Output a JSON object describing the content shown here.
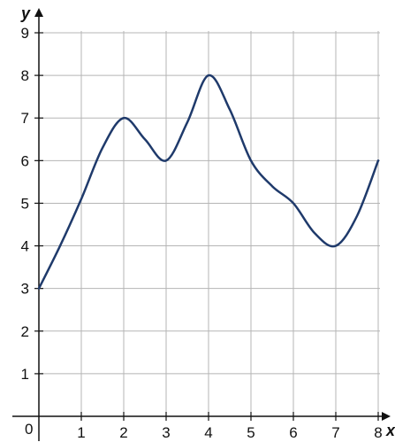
{
  "chart_data": {
    "type": "line",
    "xlabel": "x",
    "ylabel": "y",
    "xlim": [
      0,
      8
    ],
    "ylim": [
      0,
      9
    ],
    "x_ticks": [
      0,
      1,
      2,
      3,
      4,
      5,
      6,
      7,
      8
    ],
    "y_ticks": [
      1,
      2,
      3,
      4,
      5,
      6,
      7,
      8,
      9
    ],
    "origin_label": "0",
    "grid": true,
    "series": [
      {
        "color": "#1f3a6b",
        "points": [
          [
            0,
            3
          ],
          [
            0.5,
            4
          ],
          [
            1,
            5.1
          ],
          [
            1.5,
            6.3
          ],
          [
            2,
            7
          ],
          [
            2.5,
            6.5
          ],
          [
            3,
            6
          ],
          [
            3.5,
            6.9
          ],
          [
            4,
            8
          ],
          [
            4.5,
            7.2
          ],
          [
            5,
            6
          ],
          [
            5.5,
            5.4
          ],
          [
            6,
            5
          ],
          [
            6.5,
            4.3
          ],
          [
            7,
            4
          ],
          [
            7.5,
            4.7
          ],
          [
            8,
            6
          ]
        ]
      }
    ]
  }
}
